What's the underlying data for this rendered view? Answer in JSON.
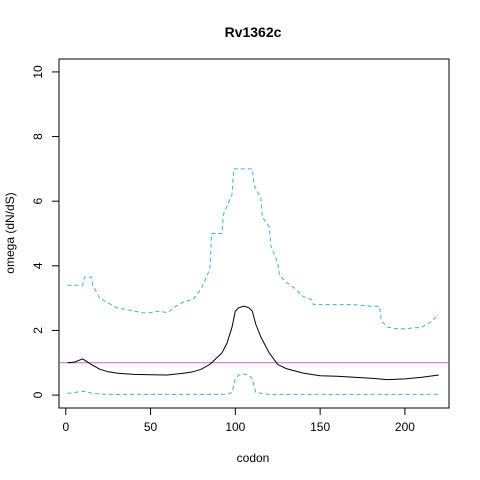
{
  "chart_data": {
    "type": "line",
    "title": "Rv1362c",
    "xlabel": "codon",
    "ylabel": "omega (dN/dS)",
    "xlim": [
      -4,
      226
    ],
    "ylim": [
      -0.4,
      10.4
    ],
    "xticks": [
      0,
      50,
      100,
      150,
      200
    ],
    "yticks": [
      0,
      2,
      4,
      6,
      8,
      10
    ],
    "grid": false,
    "legend": "none",
    "reference_line": {
      "y": 1,
      "color": "#cc66cc"
    },
    "series": [
      {
        "style": "solid",
        "color": "#000000",
        "x": [
          1,
          5,
          8,
          10,
          12,
          15,
          20,
          25,
          30,
          40,
          50,
          60,
          70,
          75,
          80,
          85,
          88,
          92,
          95,
          98,
          100,
          102,
          105,
          108,
          110,
          112,
          115,
          118,
          120,
          125,
          130,
          140,
          150,
          160,
          170,
          180,
          190,
          200,
          210,
          220
        ],
        "y": [
          1.0,
          1.02,
          1.08,
          1.12,
          1.05,
          0.95,
          0.8,
          0.72,
          0.68,
          0.64,
          0.63,
          0.62,
          0.68,
          0.72,
          0.8,
          0.95,
          1.1,
          1.3,
          1.6,
          2.1,
          2.6,
          2.7,
          2.75,
          2.7,
          2.6,
          2.2,
          1.8,
          1.5,
          1.3,
          0.95,
          0.82,
          0.68,
          0.6,
          0.58,
          0.55,
          0.52,
          0.48,
          0.5,
          0.55,
          0.62
        ]
      },
      {
        "style": "dashed",
        "color": "#3bb0e0",
        "x": [
          1,
          10,
          11,
          15,
          16,
          20,
          25,
          30,
          35,
          40,
          45,
          50,
          55,
          60,
          65,
          70,
          75,
          80,
          85,
          86,
          92,
          93,
          98,
          99,
          110,
          111,
          115,
          116,
          120,
          121,
          125,
          126,
          130,
          135,
          140,
          145,
          146,
          170,
          180,
          185,
          186,
          190,
          195,
          200,
          210,
          215,
          220
        ],
        "y": [
          3.4,
          3.4,
          3.65,
          3.65,
          3.4,
          3.0,
          2.85,
          2.7,
          2.65,
          2.6,
          2.55,
          2.55,
          2.6,
          2.55,
          2.75,
          2.9,
          2.95,
          3.3,
          3.9,
          5.0,
          5.0,
          5.6,
          6.2,
          7.0,
          7.0,
          6.5,
          6.1,
          5.5,
          5.2,
          4.6,
          4.1,
          3.7,
          3.5,
          3.3,
          3.05,
          2.95,
          2.8,
          2.8,
          2.75,
          2.75,
          2.3,
          2.1,
          2.05,
          2.05,
          2.1,
          2.25,
          2.5
        ]
      },
      {
        "style": "dashed",
        "color": "#3bb0e0",
        "x": [
          1,
          5,
          10,
          12,
          15,
          20,
          30,
          60,
          95,
          98,
          100,
          102,
          105,
          108,
          110,
          112,
          120,
          150,
          220
        ],
        "y": [
          0.05,
          0.08,
          0.12,
          0.1,
          0.06,
          0.03,
          0.02,
          0.02,
          0.02,
          0.08,
          0.5,
          0.62,
          0.65,
          0.62,
          0.5,
          0.08,
          0.02,
          0.02,
          0.02
        ]
      }
    ]
  }
}
